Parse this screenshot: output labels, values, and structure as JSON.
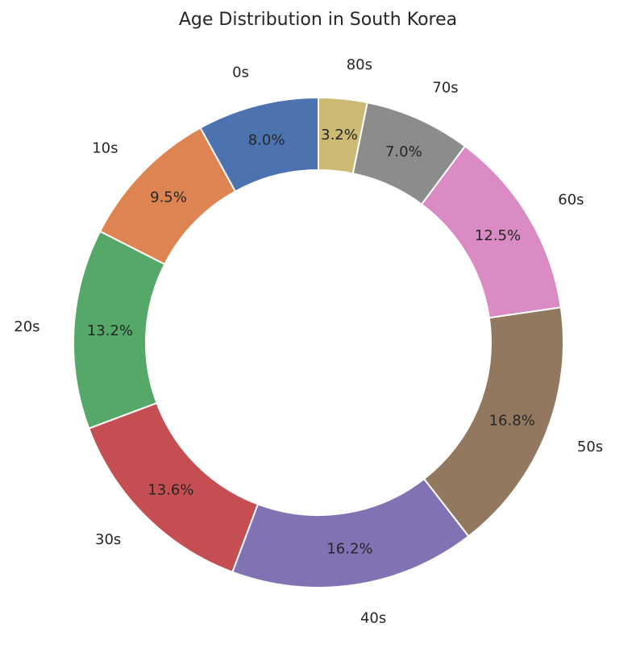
{
  "chart_data": {
    "type": "pie",
    "variant": "donut",
    "title": "Age Distribution in South Korea",
    "categories": [
      "0s",
      "10s",
      "20s",
      "30s",
      "40s",
      "50s",
      "60s",
      "70s",
      "80s"
    ],
    "values": [
      8.0,
      9.5,
      13.2,
      13.6,
      16.2,
      16.8,
      12.5,
      7.0,
      3.2
    ],
    "value_labels": [
      "8.0%",
      "9.5%",
      "13.2%",
      "13.6%",
      "16.2%",
      "16.8%",
      "12.5%",
      "7.0%",
      "3.2%"
    ],
    "colors": [
      "#4c72b0",
      "#dd8452",
      "#55a868",
      "#c44e52",
      "#8172b3",
      "#937860",
      "#da8bc3",
      "#8c8c8c",
      "#ccb974"
    ],
    "start_angle_deg": 90,
    "direction": "counterclockwise",
    "legend": "none",
    "grid": false
  }
}
